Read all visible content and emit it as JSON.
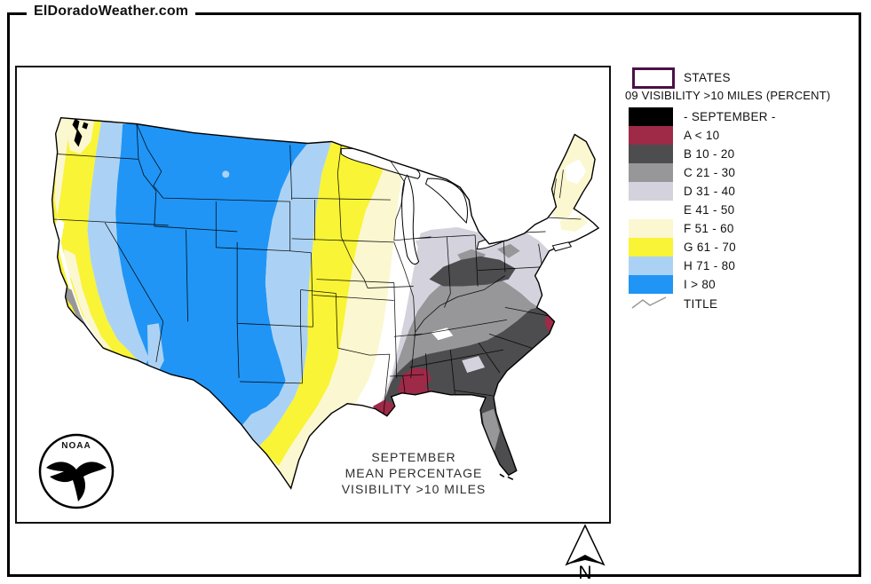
{
  "page": {
    "site_title": "ElDoradoWeather.com"
  },
  "map": {
    "caption_line1": "SEPTEMBER",
    "caption_line2": "MEAN PERCENTAGE",
    "caption_line3": "VISIBILITY >10 MILES",
    "noaa_label": "NOAA",
    "north_label": "N"
  },
  "legend": {
    "states_label": "STATES",
    "header": "09 VISIBILITY >10 MILES (PERCENT)",
    "title_label": "TITLE",
    "items": [
      {
        "label": "- SEPTEMBER -",
        "color_key": "class_black"
      },
      {
        "label": "A < 10",
        "color_key": "class_a"
      },
      {
        "label": "B 10 - 20",
        "color_key": "class_b"
      },
      {
        "label": "C 21 - 30",
        "color_key": "class_c"
      },
      {
        "label": "D 31 - 40",
        "color_key": "class_d"
      },
      {
        "label": "E 41 - 50",
        "color_key": "class_e"
      },
      {
        "label": "F 51 - 60",
        "color_key": "class_f"
      },
      {
        "label": "G 61 - 70",
        "color_key": "class_g"
      },
      {
        "label": "H 71 - 80",
        "color_key": "class_h"
      },
      {
        "label": "I > 80",
        "color_key": "class_i"
      }
    ]
  },
  "colors": {
    "class_black": "#000000",
    "class_a": "#9e2a48",
    "class_b": "#4d4d4f",
    "class_c": "#97979a",
    "class_d": "#d4d2dc",
    "class_e": "#ffffff",
    "class_f": "#fbf7d0",
    "class_g": "#f9f435",
    "class_h": "#abd2f4",
    "class_i": "#2095f5",
    "states_box_border": "#4b1147",
    "zigzag": "#9a9a9a"
  }
}
